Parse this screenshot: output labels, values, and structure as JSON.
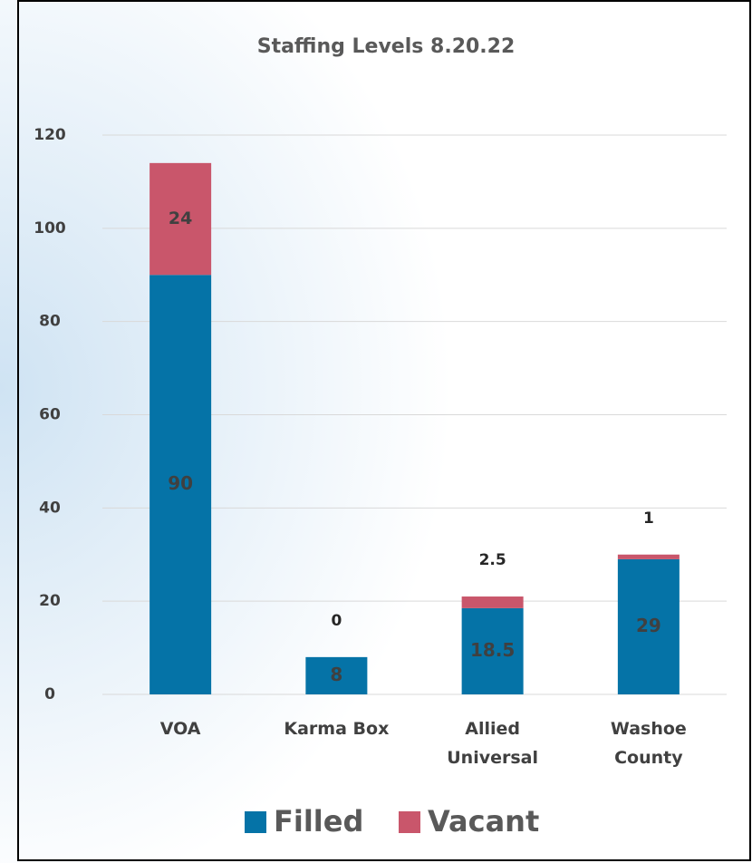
{
  "chart_data": {
    "type": "stacked_bar",
    "title": "Staffing Levels 8.20.22",
    "categories": [
      "VOA",
      "Karma Box",
      "Allied Universal",
      "Washoe County"
    ],
    "series": [
      {
        "name": "Filled",
        "color": "#0573a7",
        "values": [
          90,
          8,
          18.5,
          29
        ]
      },
      {
        "name": "Vacant",
        "color": "#c9566b",
        "values": [
          24,
          0,
          2.5,
          1
        ]
      }
    ],
    "ylim": [
      0,
      120
    ],
    "yticks": [
      0,
      20,
      40,
      60,
      80,
      100,
      120
    ],
    "grid": true,
    "legend": "bottom"
  }
}
